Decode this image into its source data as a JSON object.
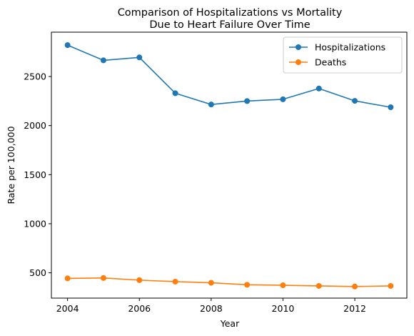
{
  "chart_data": {
    "type": "line",
    "title_line1": "Comparison of Hospitalizations vs Mortality",
    "title_line2": "Due to Heart Failure Over Time",
    "xlabel": "Year",
    "ylabel": "Rate per 100,000",
    "x": [
      2004,
      2005,
      2006,
      2007,
      2008,
      2009,
      2010,
      2011,
      2012,
      2013
    ],
    "xlim": [
      2003.55,
      2013.45
    ],
    "ylim": [
      242,
      2952
    ],
    "xticks": [
      2004,
      2006,
      2008,
      2010,
      2012
    ],
    "yticks": [
      500,
      1000,
      1500,
      2000,
      2500
    ],
    "grid": false,
    "legend_position": "top-right",
    "series": [
      {
        "name": "Hospitalizations",
        "color": "#1f77b4",
        "marker": "circle",
        "values": [
          2820,
          2665,
          2695,
          2330,
          2215,
          2250,
          2268,
          2378,
          2252,
          2187
        ]
      },
      {
        "name": "Deaths",
        "color": "#ff7f0e",
        "marker": "circle",
        "values": [
          443,
          447,
          425,
          410,
          398,
          378,
          373,
          366,
          360,
          366
        ]
      }
    ]
  }
}
